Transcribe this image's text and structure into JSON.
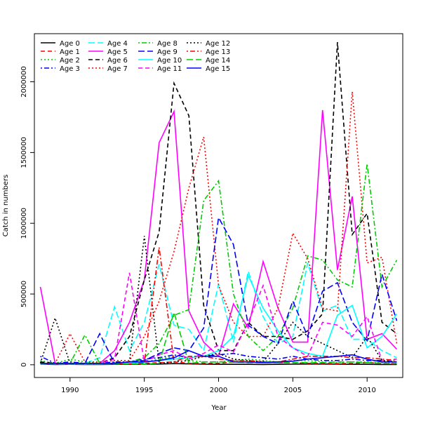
{
  "chart_data": {
    "type": "line",
    "xlabel": "Year",
    "ylabel": "Catch in numbers",
    "xlim": [
      1987.6,
      2012.4
    ],
    "ylim": [
      -90000,
      2340000
    ],
    "x_ticks": [
      1990,
      1995,
      2000,
      2005,
      2010
    ],
    "y_ticks": [
      0,
      500000,
      1000000,
      1500000,
      2000000
    ],
    "legend_position": "top-left",
    "legend_columns": 4,
    "grid": false,
    "x": [
      1988,
      1989,
      1990,
      1991,
      1992,
      1993,
      1994,
      1995,
      1996,
      1997,
      1998,
      1999,
      2000,
      2001,
      2002,
      2003,
      2004,
      2005,
      2006,
      2007,
      2008,
      2009,
      2010,
      2011,
      2012
    ],
    "series": [
      {
        "name": "Age 0",
        "color": "#000000",
        "dash": "solid",
        "values": [
          5000,
          2000,
          3000,
          2000,
          2000,
          3000,
          3000,
          4000,
          5000,
          8000,
          6000,
          4000,
          3000,
          3000,
          3000,
          2000,
          3000,
          4000,
          5000,
          5000,
          4000,
          3000,
          3000,
          2000,
          2000
        ]
      },
      {
        "name": "Age 1",
        "color": "#ff0000",
        "dash": "dashed",
        "values": [
          20000,
          5000,
          8000,
          5000,
          5000,
          5000,
          8000,
          10000,
          15000,
          20000,
          10000,
          10000,
          10000,
          20000,
          20000,
          20000,
          15000,
          15000,
          10000,
          10000,
          8000,
          10000,
          15000,
          10000,
          5000
        ]
      },
      {
        "name": "Age 2",
        "color": "#00cd00",
        "dash": "dotted",
        "values": [
          30000,
          10000,
          40000,
          20000,
          10000,
          10000,
          20000,
          20000,
          40000,
          60000,
          30000,
          20000,
          20000,
          30000,
          40000,
          30000,
          20000,
          30000,
          30000,
          20000,
          15000,
          20000,
          20000,
          15000,
          10000
        ]
      },
      {
        "name": "Age 3",
        "color": "#0000ff",
        "dash": "dotdash",
        "values": [
          60000,
          10000,
          20000,
          10000,
          10000,
          20000,
          20000,
          40000,
          50000,
          70000,
          50000,
          60000,
          70000,
          80000,
          60000,
          50000,
          40000,
          60000,
          40000,
          30000,
          30000,
          40000,
          30000,
          30000,
          20000
        ]
      },
      {
        "name": "Age 4",
        "color": "#00ffff",
        "dash": "longdash",
        "values": [
          10000,
          5000,
          5000,
          10000,
          50000,
          410000,
          100000,
          300000,
          710000,
          280000,
          250000,
          100000,
          570000,
          160000,
          660000,
          340000,
          150000,
          200000,
          720000,
          380000,
          420000,
          180000,
          180000,
          100000,
          50000
        ]
      },
      {
        "name": "Age 5",
        "color": "#ff00ff",
        "dash": "solid",
        "values": [
          550000,
          10000,
          10000,
          10000,
          10000,
          100000,
          300000,
          600000,
          1570000,
          1790000,
          380000,
          160000,
          60000,
          430000,
          260000,
          730000,
          400000,
          160000,
          160000,
          1800000,
          670000,
          1190000,
          180000,
          220000,
          110000
        ]
      },
      {
        "name": "Age 6",
        "color": "#000000",
        "dash": "dashed",
        "values": [
          20000,
          10000,
          10000,
          10000,
          10000,
          50000,
          200000,
          600000,
          940000,
          1990000,
          1760000,
          420000,
          100000,
          100000,
          300000,
          200000,
          200000,
          180000,
          240000,
          360000,
          2280000,
          920000,
          1070000,
          300000,
          220000
        ]
      },
      {
        "name": "Age 7",
        "color": "#ff0000",
        "dash": "dotted",
        "values": [
          10000,
          10000,
          220000,
          20000,
          20000,
          30000,
          30000,
          200000,
          450000,
          800000,
          1250000,
          1610000,
          560000,
          300000,
          200000,
          200000,
          400000,
          930000,
          750000,
          400000,
          380000,
          1930000,
          720000,
          760000,
          150000
        ]
      },
      {
        "name": "Age 8",
        "color": "#00cd00",
        "dash": "dotdash",
        "values": [
          10000,
          10000,
          10000,
          210000,
          10000,
          10000,
          20000,
          50000,
          150000,
          350000,
          390000,
          1160000,
          1300000,
          500000,
          200000,
          100000,
          200000,
          400000,
          770000,
          740000,
          600000,
          550000,
          1420000,
          550000,
          740000
        ]
      },
      {
        "name": "Age 9",
        "color": "#0000ff",
        "dash": "longdash",
        "values": [
          10000,
          10000,
          10000,
          10000,
          220000,
          10000,
          20000,
          30000,
          80000,
          120000,
          100000,
          260000,
          1040000,
          850000,
          280000,
          200000,
          150000,
          450000,
          200000,
          520000,
          580000,
          300000,
          170000,
          640000,
          310000
        ]
      },
      {
        "name": "Age 10",
        "color": "#00ffff",
        "dash": "solid",
        "values": [
          10000,
          5000,
          5000,
          5000,
          5000,
          10000,
          10000,
          20000,
          30000,
          40000,
          50000,
          60000,
          100000,
          200000,
          630000,
          400000,
          240000,
          120000,
          80000,
          60000,
          350000,
          420000,
          120000,
          200000,
          360000
        ]
      },
      {
        "name": "Age 11",
        "color": "#ff00ff",
        "dash": "dashed",
        "values": [
          10000,
          10000,
          10000,
          10000,
          10000,
          40000,
          650000,
          20000,
          70000,
          100000,
          40000,
          80000,
          140000,
          90000,
          300000,
          560000,
          200000,
          120000,
          60000,
          300000,
          280000,
          200000,
          340000,
          30000,
          40000
        ]
      },
      {
        "name": "Age 12",
        "color": "#000000",
        "dash": "dotted",
        "values": [
          10000,
          330000,
          10000,
          10000,
          10000,
          10000,
          20000,
          910000,
          10000,
          20000,
          30000,
          60000,
          80000,
          40000,
          30000,
          20000,
          150000,
          300000,
          200000,
          150000,
          100000,
          50000,
          200000,
          30000,
          20000
        ]
      },
      {
        "name": "Age 13",
        "color": "#ff0000",
        "dash": "dotdash",
        "values": [
          5000,
          5000,
          5000,
          5000,
          5000,
          5000,
          5000,
          10000,
          830000,
          20000,
          60000,
          60000,
          40000,
          30000,
          30000,
          20000,
          20000,
          40000,
          60000,
          60000,
          60000,
          50000,
          50000,
          40000,
          30000
        ]
      },
      {
        "name": "Age 14",
        "color": "#00cd00",
        "dash": "longdash",
        "values": [
          5000,
          5000,
          5000,
          5000,
          5000,
          5000,
          5000,
          5000,
          10000,
          370000,
          10000,
          20000,
          20000,
          20000,
          15000,
          15000,
          15000,
          15000,
          15000,
          15000,
          20000,
          20000,
          15000,
          10000,
          10000
        ]
      },
      {
        "name": "Age 15",
        "color": "#0000ff",
        "dash": "solid",
        "values": [
          10000,
          10000,
          10000,
          10000,
          10000,
          10000,
          20000,
          20000,
          30000,
          50000,
          100000,
          60000,
          60000,
          20000,
          20000,
          15000,
          20000,
          25000,
          40000,
          50000,
          60000,
          70000,
          40000,
          20000,
          20000
        ]
      }
    ]
  }
}
